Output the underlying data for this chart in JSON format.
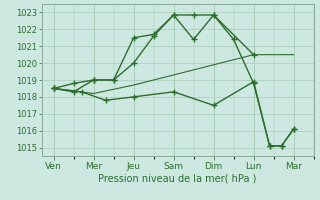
{
  "background_color": "#cce8e0",
  "grid_color": "#aaccbb",
  "line_color": "#2d6e2d",
  "x_labels": [
    "Ven",
    "Mer",
    "Jeu",
    "Sam",
    "Dim",
    "Lun",
    "Mar"
  ],
  "x_positions": [
    0,
    1,
    2,
    3,
    4,
    5,
    6
  ],
  "ylim": [
    1014.5,
    1023.5
  ],
  "yticks": [
    1015,
    1016,
    1017,
    1018,
    1019,
    1020,
    1021,
    1022,
    1023
  ],
  "xlabel": "Pression niveau de la mer( hPa )",
  "line1_x": [
    0,
    0.5,
    1.0,
    1.5,
    2.0,
    2.5,
    3.0,
    3.5,
    4.0,
    5.0
  ],
  "line1_y": [
    1018.5,
    1018.3,
    1019.0,
    1019.0,
    1020.0,
    1021.6,
    1022.85,
    1022.85,
    1022.85,
    1020.5
  ],
  "line2_x": [
    0,
    0.5,
    1.0,
    1.5,
    2.0,
    2.5,
    3.0,
    3.5,
    4.0,
    4.5,
    5.0,
    5.4,
    5.7,
    6.0
  ],
  "line2_y": [
    1018.5,
    1018.8,
    1019.0,
    1019.0,
    1021.5,
    1021.7,
    1022.85,
    1021.4,
    1022.85,
    1021.4,
    1018.8,
    1015.1,
    1015.1,
    1016.1
  ],
  "line3_x": [
    0,
    0.7,
    1.3,
    2.0,
    3.0,
    4.0,
    5.0,
    5.4,
    5.7,
    6.0
  ],
  "line3_y": [
    1018.5,
    1018.3,
    1017.8,
    1018.0,
    1018.3,
    1017.5,
    1018.9,
    1015.1,
    1015.1,
    1016.1
  ],
  "line4_x": [
    0,
    1,
    2,
    3,
    4,
    5,
    6
  ],
  "line4_y": [
    1018.5,
    1018.2,
    1018.7,
    1019.3,
    1019.9,
    1020.5,
    1020.5
  ]
}
